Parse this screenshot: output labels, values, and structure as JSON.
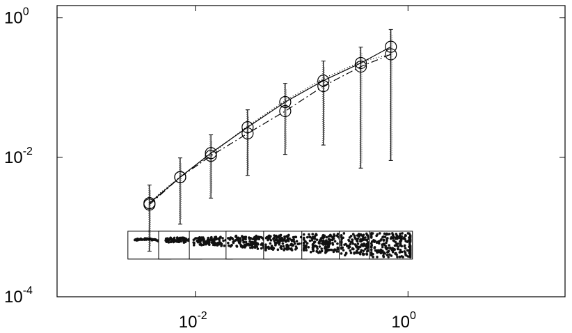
{
  "chart_data": {
    "type": "line",
    "xscale": "log",
    "yscale": "log",
    "xlim": [
      0.0005,
      30
    ],
    "ylim": [
      0.0001,
      1.5
    ],
    "x_ticks": [
      {
        "value": 0.01,
        "base": "10",
        "exp": "-2"
      },
      {
        "value": 1,
        "base": "10",
        "exp": "0"
      }
    ],
    "y_ticks": [
      {
        "value": 0.0001,
        "base": "10",
        "exp": "-4"
      },
      {
        "value": 0.01,
        "base": "10",
        "exp": "-2"
      },
      {
        "value": 1,
        "base": "10",
        "exp": "0"
      }
    ],
    "x": [
      0.0037,
      0.0072,
      0.014,
      0.031,
      0.07,
      0.16,
      0.36,
      0.69
    ],
    "series": [
      {
        "style": "solid",
        "values": [
          0.0022,
          0.0052,
          0.0115,
          0.027,
          0.062,
          0.126,
          0.225,
          0.385
        ]
      },
      {
        "style": "dashdot",
        "values": [
          0.0021,
          0.0052,
          0.0105,
          0.022,
          0.046,
          0.105,
          0.2,
          0.3
        ]
      },
      {
        "style": "dotted",
        "values": [
          0.0023,
          0.0053,
          0.011,
          0.028,
          0.065,
          0.135,
          0.235,
          0.3
        ]
      }
    ],
    "error_bars": [
      {
        "x": 0.0037,
        "low": 0.00045,
        "high": 0.004
      },
      {
        "x": 0.0072,
        "low": 0.0011,
        "high": 0.0098
      },
      {
        "x": 0.014,
        "low": 0.0026,
        "high": 0.021
      },
      {
        "x": 0.031,
        "low": 0.0055,
        "high": 0.048
      },
      {
        "x": 0.07,
        "low": 0.011,
        "high": 0.115
      },
      {
        "x": 0.16,
        "low": 0.015,
        "high": 0.24
      },
      {
        "x": 0.36,
        "low": 0.007,
        "high": 0.38
      },
      {
        "x": 0.69,
        "low": 0.009,
        "high": 0.68
      }
    ],
    "markers": "circle",
    "grid": false,
    "legend": "none",
    "insets": {
      "count": 8,
      "y_level": 0.00055,
      "description": "thumbnail boxes of point clouds below each data point, increasingly dispersed"
    }
  }
}
